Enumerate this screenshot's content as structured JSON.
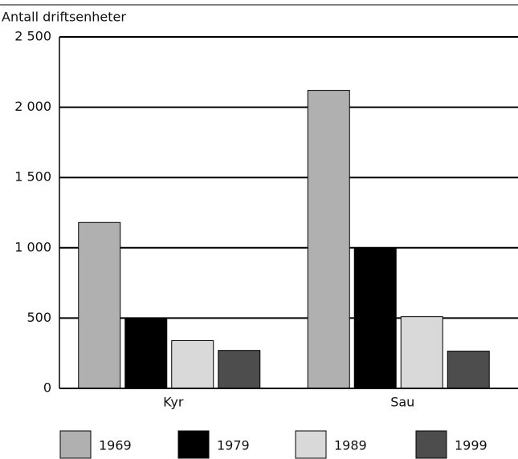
{
  "chart_data": {
    "type": "bar",
    "y_label": "Antall driftsenheter",
    "categories": [
      "Kyr",
      "Sau"
    ],
    "series": [
      {
        "name": "1969",
        "color": "#b0b0b0",
        "values": [
          1180,
          2120
        ]
      },
      {
        "name": "1979",
        "color": "#000000",
        "values": [
          500,
          1000
        ]
      },
      {
        "name": "1989",
        "color": "#d9d9d9",
        "values": [
          340,
          510
        ]
      },
      {
        "name": "1999",
        "color": "#4d4d4d",
        "values": [
          270,
          265
        ]
      }
    ],
    "ylim": [
      0,
      2500
    ],
    "yticks": [
      0,
      500,
      {
        "value": 1000,
        "label": "1 000"
      },
      {
        "value": 1500,
        "label": "1 500"
      },
      {
        "value": 2000,
        "label": "2 000"
      },
      {
        "value": 2500,
        "label": "2 500"
      }
    ],
    "grid": true,
    "legend": "bottom"
  }
}
